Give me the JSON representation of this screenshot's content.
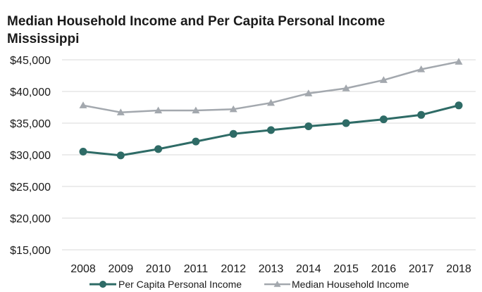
{
  "chart_data": {
    "type": "line",
    "title": "Median Household Income and Per Capita Personal Income",
    "subtitle": "Mississippi",
    "xlabel": "",
    "ylabel": "",
    "categories": [
      "2008",
      "2009",
      "2010",
      "2011",
      "2012",
      "2013",
      "2014",
      "2015",
      "2016",
      "2017",
      "2018"
    ],
    "ylim": [
      15000,
      45000
    ],
    "yticks": [
      "$15,000",
      "$20,000",
      "$25,000",
      "$30,000",
      "$35,000",
      "$40,000",
      "$45,000"
    ],
    "ytick_values": [
      15000,
      20000,
      25000,
      30000,
      35000,
      40000,
      45000
    ],
    "grid": true,
    "legend_position": "bottom",
    "series": [
      {
        "name": "Per Capita Personal Income",
        "color": "#2e6b66",
        "marker": "circle",
        "values": [
          30500,
          29900,
          30900,
          32100,
          33300,
          33900,
          34500,
          35000,
          35600,
          36300,
          37800
        ]
      },
      {
        "name": "Median Household Income",
        "color": "#a3a8ae",
        "marker": "triangle",
        "values": [
          37800,
          36700,
          37000,
          37000,
          37200,
          38200,
          39700,
          40500,
          41800,
          43500,
          44700
        ]
      }
    ]
  }
}
